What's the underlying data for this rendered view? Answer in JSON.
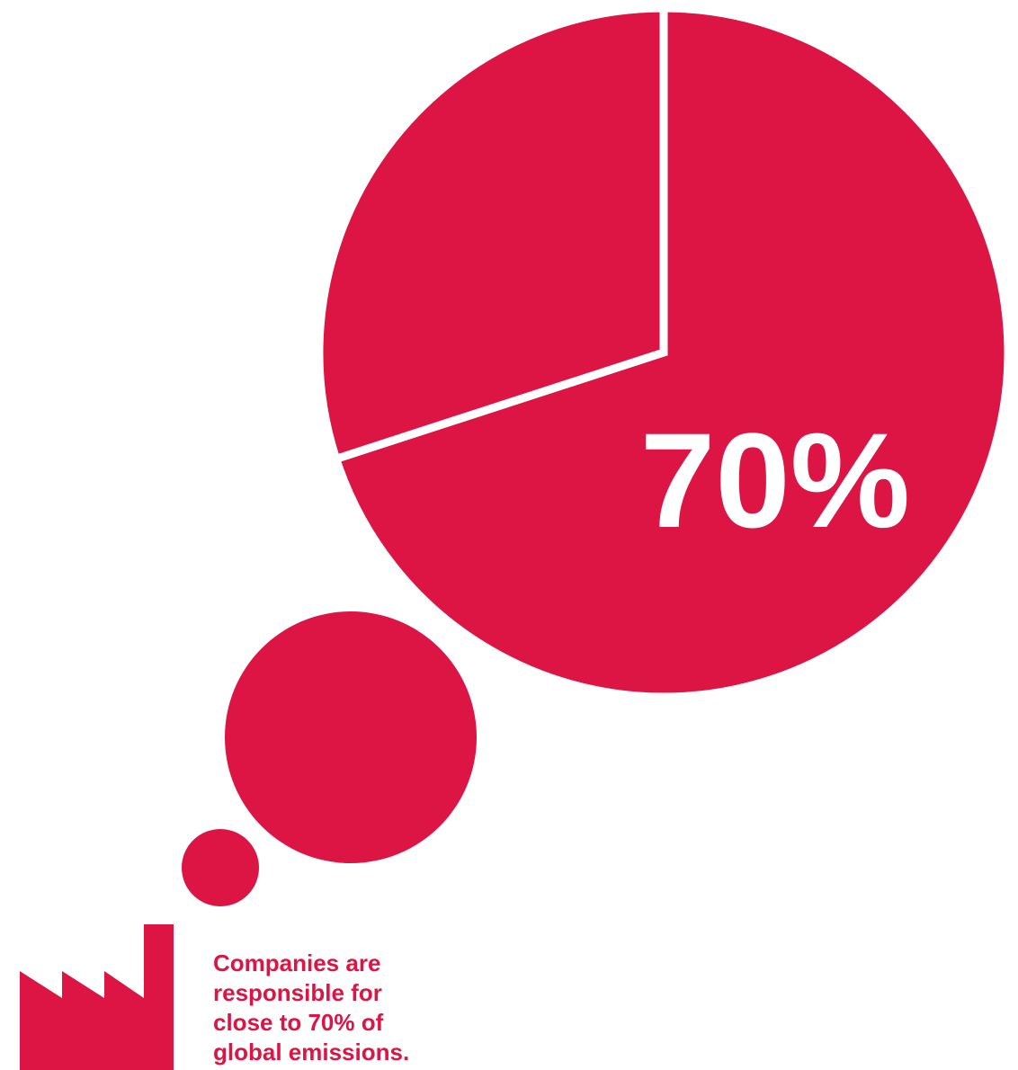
{
  "colors": {
    "accent": "#dc1545",
    "background": "#ffffff"
  },
  "chart_data": {
    "type": "pie",
    "title": "",
    "slices": [
      {
        "label": "70%",
        "value": 70
      },
      {
        "label": "",
        "value": 30
      }
    ]
  },
  "caption": {
    "lines": [
      "Companies are",
      "responsible for",
      "close to 70% of",
      "global emissions."
    ]
  },
  "icons": {
    "factory": "factory-icon",
    "bubbles": "thought-bubble-icon"
  }
}
